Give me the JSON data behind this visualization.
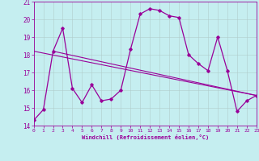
{
  "title": "",
  "xlabel": "Windchill (Refroidissement éolien,°C)",
  "bg_color": "#c5eef0",
  "line_color": "#990099",
  "grid_color": "#b0cccc",
  "xlim": [
    0,
    23
  ],
  "ylim": [
    14,
    21
  ],
  "xticks": [
    0,
    1,
    2,
    3,
    4,
    5,
    6,
    7,
    8,
    9,
    10,
    11,
    12,
    13,
    14,
    15,
    16,
    17,
    18,
    19,
    20,
    21,
    22,
    23
  ],
  "yticks": [
    14,
    15,
    16,
    17,
    18,
    19,
    20,
    21
  ],
  "curve1_x": [
    0,
    1,
    2,
    3,
    4,
    5,
    6,
    7,
    8,
    9,
    10,
    11,
    12,
    13,
    14,
    15,
    16,
    17,
    18,
    19,
    20,
    21,
    22,
    23
  ],
  "curve1_y": [
    14.3,
    14.9,
    18.2,
    19.5,
    16.1,
    15.3,
    16.3,
    15.4,
    15.5,
    16.0,
    18.3,
    20.3,
    20.6,
    20.5,
    20.2,
    20.1,
    18.0,
    17.5,
    17.1,
    19.0,
    17.1,
    14.8,
    15.4,
    15.7
  ],
  "trend1_x": [
    0,
    23
  ],
  "trend1_y": [
    18.2,
    15.7
  ],
  "trend2_x": [
    2,
    23
  ],
  "trend2_y": [
    18.2,
    15.7
  ]
}
